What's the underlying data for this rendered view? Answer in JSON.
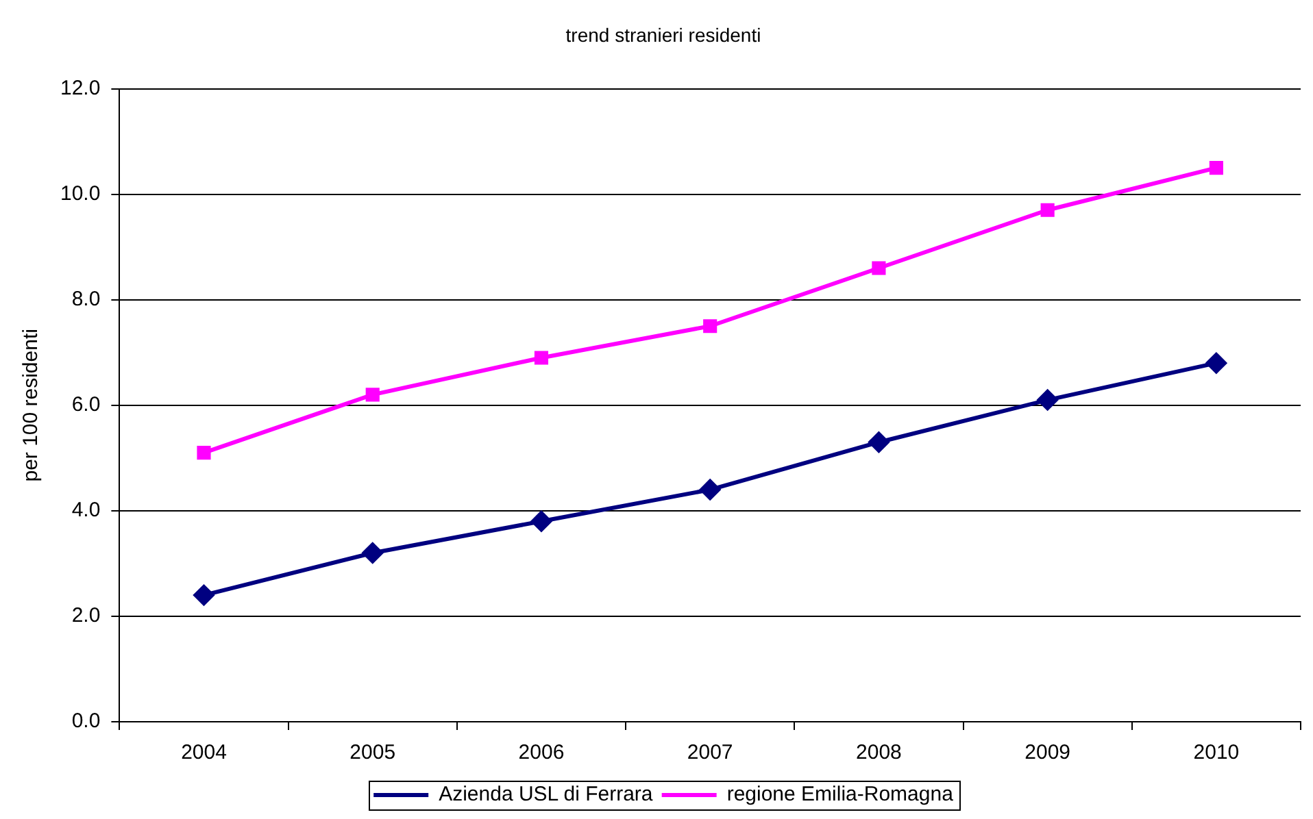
{
  "chart_data": {
    "type": "line",
    "title": "trend stranieri residenti",
    "ylabel": "per 100 residenti",
    "categories": [
      "2004",
      "2005",
      "2006",
      "2007",
      "2008",
      "2009",
      "2010"
    ],
    "series": [
      {
        "name": "Azienda USL di Ferrara",
        "color": "#000080",
        "marker": "diamond",
        "values": [
          2.4,
          3.2,
          3.8,
          4.4,
          5.3,
          6.1,
          6.8
        ]
      },
      {
        "name": "regione Emilia-Romagna",
        "color": "#ff00ff",
        "marker": "square",
        "values": [
          5.1,
          6.2,
          6.9,
          7.5,
          8.6,
          9.7,
          10.5
        ]
      }
    ],
    "ylim": [
      0,
      12
    ],
    "yticks": [
      {
        "value": 0,
        "label": "0.0"
      },
      {
        "value": 2,
        "label": "2.0"
      },
      {
        "value": 4,
        "label": "4.0"
      },
      {
        "value": 6,
        "label": "6.0"
      },
      {
        "value": 8,
        "label": "8.0"
      },
      {
        "value": 10,
        "label": "10.0"
      },
      {
        "value": 12,
        "label": "12.0"
      }
    ],
    "grid": "y",
    "legend": "bottom",
    "line_style": "solid"
  }
}
